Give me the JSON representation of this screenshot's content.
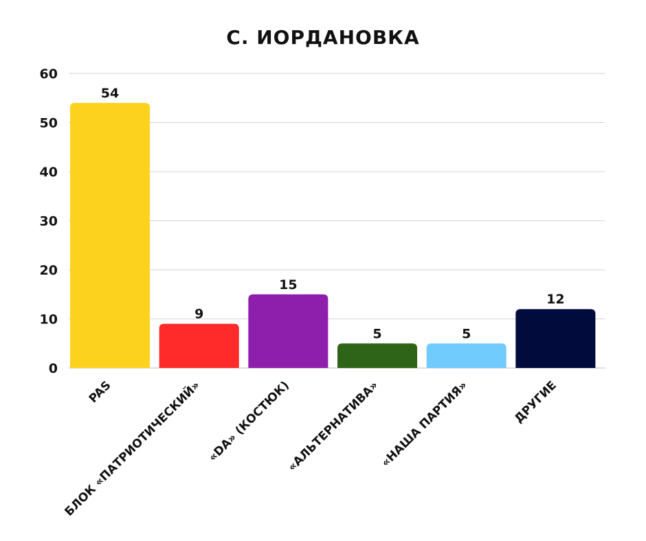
{
  "chart_data": {
    "type": "bar",
    "title": "С. ИОРДАНОВКА",
    "categories": [
      "PAS",
      "БЛОК «ПАТРИОТИЧЕСКИЙ»",
      "«DA» (КОСТЮК)",
      "«АЛЬТЕРНАТИВА»",
      "«НАША ПАРТИЯ»",
      "ДРУГИЕ"
    ],
    "values": [
      54,
      9,
      15,
      5,
      5,
      12
    ],
    "colors": [
      "#FDD21F",
      "#FF2A2A",
      "#8E1FAD",
      "#2E6417",
      "#71CBFD",
      "#010C3D"
    ],
    "xlabel": "",
    "ylabel": "",
    "ylim": [
      0,
      60
    ],
    "yticks": [
      0,
      10,
      20,
      30,
      40,
      50,
      60
    ],
    "grid": true,
    "data_labels": true
  }
}
